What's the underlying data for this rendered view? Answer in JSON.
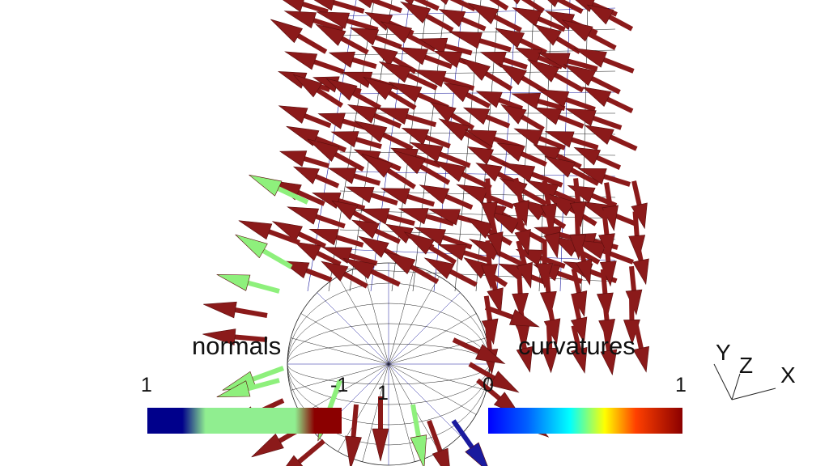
{
  "scene": {
    "arrow_color_main": "#8b1a1a",
    "arrow_color_alt": "#8ef07c",
    "mesh_color": "#1a1a9e",
    "mesh_color_dark": "#222222"
  },
  "normals_legend": {
    "title": "normals",
    "tick_min": "1",
    "tick_mid": "-1",
    "tick_mid2": "1",
    "colors": [
      "#00008b",
      "#90ee90",
      "#8b0000"
    ]
  },
  "curvatures_legend": {
    "title": "curvatures",
    "tick_min": "0",
    "tick_max": "1",
    "colors": [
      "#0000ff",
      "#00ffff",
      "#ffff00",
      "#ff0000",
      "#8b0000"
    ]
  },
  "axes": {
    "x": "X",
    "y": "Y",
    "z": "Z"
  }
}
